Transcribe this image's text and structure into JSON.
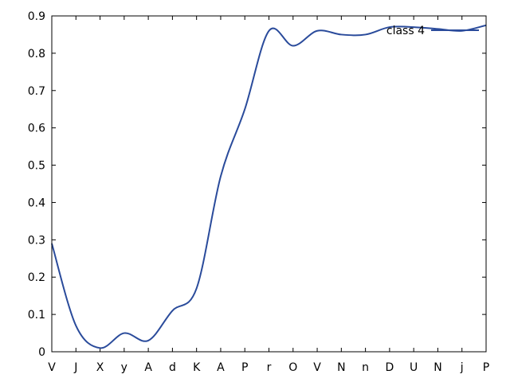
{
  "chart_data": {
    "type": "line",
    "title": "",
    "xlabel": "",
    "ylabel": "",
    "categories": [
      "V",
      "J",
      "X",
      "y",
      "A",
      "d",
      "K",
      "A",
      "P",
      "r",
      "O",
      "V",
      "N",
      "n",
      "D",
      "U",
      "N",
      "j",
      "P"
    ],
    "ylim": [
      0,
      0.9
    ],
    "y_ticks": [
      "0",
      "0.1",
      "0.2",
      "0.3",
      "0.4",
      "0.5",
      "0.6",
      "0.7",
      "0.8",
      "0.9"
    ],
    "grid": false,
    "legend_position": "top-right",
    "series": [
      {
        "name": "class 4",
        "color": "#2a4b9b",
        "values": [
          0.29,
          0.07,
          0.01,
          0.05,
          0.03,
          0.11,
          0.17,
          0.47,
          0.65,
          0.86,
          0.82,
          0.86,
          0.85,
          0.85,
          0.87,
          0.87,
          0.865,
          0.86,
          0.875
        ]
      }
    ]
  }
}
